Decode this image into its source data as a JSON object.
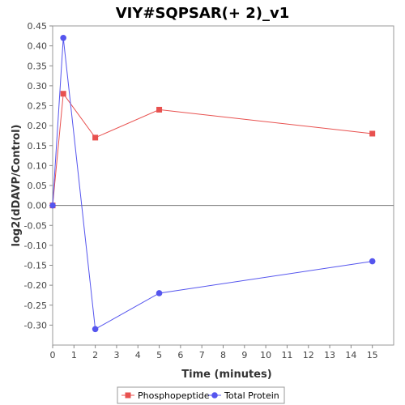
{
  "chart_data": {
    "type": "line",
    "title": "VIY#SQPSAR(+ 2)_v1",
    "xlabel": "Time (minutes)",
    "ylabel": "log2(dDAVP/Control)",
    "xlim": [
      0,
      16
    ],
    "ylim": [
      -0.35,
      0.45
    ],
    "x_ticks": [
      0,
      1,
      2,
      3,
      4,
      5,
      6,
      7,
      8,
      9,
      10,
      11,
      12,
      13,
      14,
      15
    ],
    "y_ticks": [
      0.45,
      0.4,
      0.35,
      0.3,
      0.25,
      0.2,
      0.15,
      0.1,
      0.05,
      0.0,
      -0.05,
      -0.1,
      -0.15,
      -0.2,
      -0.25,
      -0.3
    ],
    "y_tick_labels": [
      "0.45",
      "0.40",
      "0.35",
      "0.30",
      "0.25",
      "0.20",
      "0.15",
      "0.10",
      "0.05",
      "0.00",
      "-0.05",
      "-0.10",
      "-0.15",
      "-0.20",
      "-0.25",
      "-0.30"
    ],
    "grid": false,
    "zero_line": true,
    "legend_position": "bottom",
    "series": [
      {
        "name": "Phosphopeptide",
        "color": "#e8514f",
        "marker": "square",
        "x": [
          0,
          0.5,
          2,
          5,
          15
        ],
        "values": [
          0.0,
          0.28,
          0.17,
          0.24,
          0.18
        ]
      },
      {
        "name": "Total Protein",
        "color": "#5555ee",
        "marker": "circle",
        "x": [
          0,
          0.5,
          2,
          5,
          15
        ],
        "values": [
          0.0,
          0.42,
          -0.31,
          -0.22,
          -0.14
        ]
      }
    ]
  }
}
